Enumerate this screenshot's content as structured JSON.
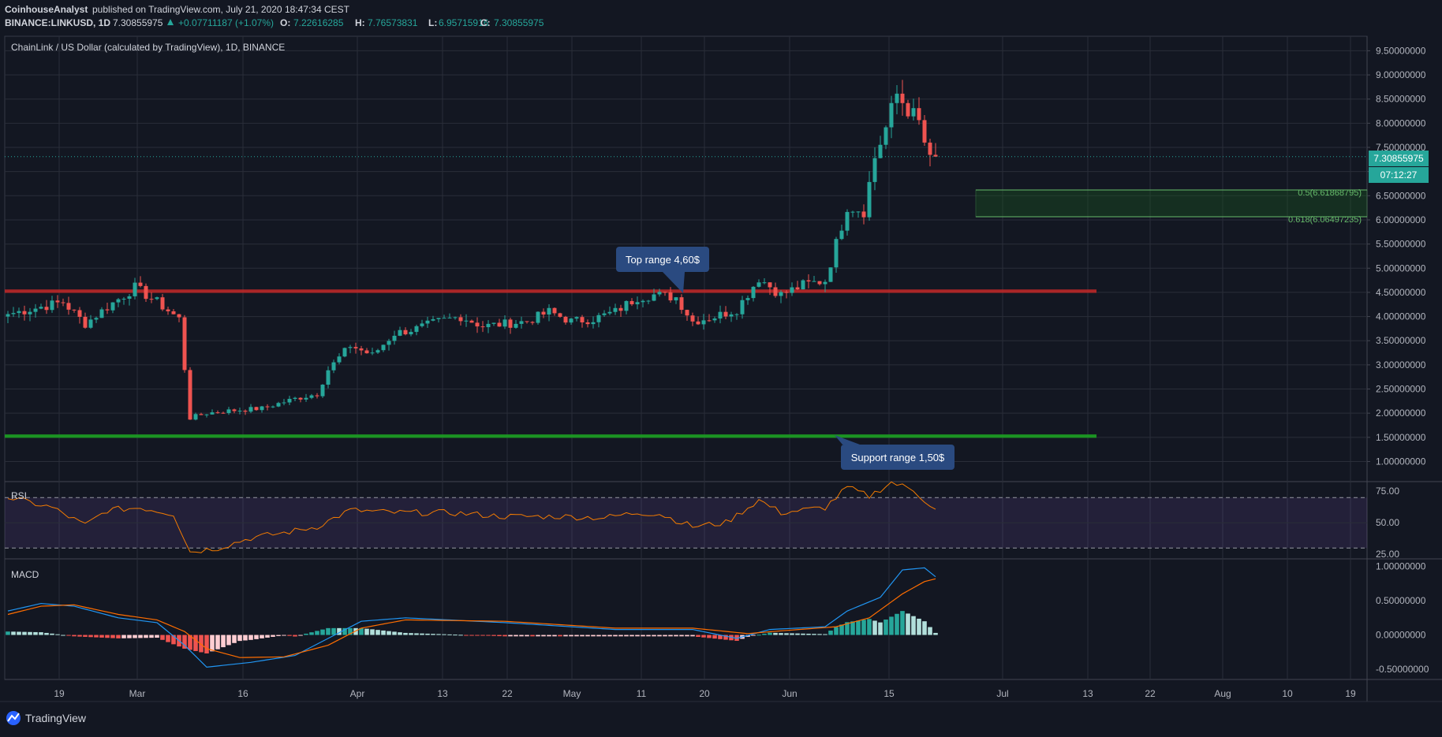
{
  "header": {
    "author": "CoinhouseAnalyst",
    "published": "published on TradingView.com, July 21, 2020 18:47:34 CEST",
    "symbol": "BINANCE:LINKUSD, 1D",
    "last": "7.30855975",
    "change": "+0.07711187 (+1.07%)",
    "o_label": "O:",
    "o": "7.22616285",
    "h_label": "H:",
    "h": "7.76573831",
    "l_label": "L:",
    "l": "6.95715916",
    "c_label": "C:",
    "c": "7.30855975"
  },
  "chart_title": "ChainLink / US Dollar (calculated by TradingView), 1D, BINANCE",
  "price_badge": "7.30855975",
  "countdown_badge": "07:12:27",
  "fib_labels": [
    "0.5(6.61868795)",
    "0.618(6.06497235)"
  ],
  "callouts": {
    "top": "Top range 4,60$",
    "support": "Support range 1,50$"
  },
  "rsi_label": "RSI",
  "macd_label": "MACD",
  "footer_logo": "TradingView",
  "colors": {
    "up": "#26a69a",
    "down": "#ef5350",
    "bg": "#131722",
    "grid": "#2a2e39",
    "text": "#b2b5be"
  },
  "chart_data": [
    {
      "type": "candlestick",
      "x_ticks": [
        "19",
        "Mar",
        "16",
        "Apr",
        "13",
        "22",
        "May",
        "11",
        "20",
        "Jun",
        "15",
        "Jul",
        "13",
        "22",
        "Aug",
        "10",
        "19"
      ],
      "y_ticks": [
        "9.50000000",
        "9.00000000",
        "8.50000000",
        "8.00000000",
        "7.50000000",
        "7.",
        "6.50000000",
        "6.00000000",
        "5.50000000",
        "5.00000000",
        "4.50000000",
        "4.00000000",
        "3.50000000",
        "3.00000000",
        "2.50000000",
        "2.00000000",
        "1.50000000",
        "1.00000000"
      ],
      "ylim": [
        0.6,
        9.8
      ],
      "anchors": [
        [
          0,
          4.05
        ],
        [
          10,
          4.3
        ],
        [
          14,
          3.85
        ],
        [
          18,
          4.2
        ],
        [
          23,
          4.6
        ],
        [
          27,
          4.3
        ],
        [
          31,
          3.95
        ],
        [
          33,
          1.9
        ],
        [
          36,
          2.0
        ],
        [
          40,
          2.05
        ],
        [
          46,
          2.1
        ],
        [
          52,
          2.3
        ],
        [
          56,
          2.4
        ],
        [
          58,
          2.9
        ],
        [
          62,
          3.4
        ],
        [
          66,
          3.2
        ],
        [
          70,
          3.65
        ],
        [
          74,
          3.75
        ],
        [
          78,
          3.9
        ],
        [
          82,
          4.0
        ],
        [
          86,
          3.8
        ],
        [
          90,
          3.85
        ],
        [
          94,
          3.9
        ],
        [
          98,
          4.1
        ],
        [
          102,
          3.9
        ],
        [
          106,
          3.95
        ],
        [
          110,
          4.1
        ],
        [
          114,
          4.4
        ],
        [
          117,
          4.45
        ],
        [
          121,
          4.4
        ],
        [
          124,
          3.9
        ],
        [
          128,
          4.0
        ],
        [
          132,
          4.15
        ],
        [
          136,
          4.8
        ],
        [
          140,
          4.45
        ],
        [
          144,
          4.65
        ],
        [
          148,
          4.75
        ],
        [
          150,
          5.5
        ],
        [
          152,
          6.3
        ],
        [
          155,
          6.2
        ],
        [
          157,
          7.3
        ],
        [
          159,
          7.9
        ],
        [
          161,
          8.6
        ],
        [
          163,
          8.3
        ],
        [
          165,
          8.0
        ],
        [
          167,
          7.2
        ],
        [
          168,
          7.3
        ]
      ]
    },
    {
      "type": "line",
      "name": "RSI",
      "y_ticks": [
        "75.00",
        "50.00",
        "25.00"
      ],
      "ylim": [
        22,
        82
      ],
      "bands": [
        30,
        70
      ],
      "anchors": [
        [
          0,
          70
        ],
        [
          8,
          62
        ],
        [
          14,
          48
        ],
        [
          18,
          60
        ],
        [
          24,
          62
        ],
        [
          30,
          57
        ],
        [
          33,
          27
        ],
        [
          38,
          30
        ],
        [
          44,
          38
        ],
        [
          50,
          42
        ],
        [
          56,
          47
        ],
        [
          62,
          60
        ],
        [
          70,
          58
        ],
        [
          80,
          58
        ],
        [
          90,
          55
        ],
        [
          100,
          55
        ],
        [
          108,
          54
        ],
        [
          114,
          58
        ],
        [
          118,
          57
        ],
        [
          124,
          47
        ],
        [
          130,
          50
        ],
        [
          136,
          68
        ],
        [
          140,
          58
        ],
        [
          148,
          62
        ],
        [
          152,
          78
        ],
        [
          156,
          71
        ],
        [
          160,
          82
        ],
        [
          164,
          76
        ],
        [
          168,
          60
        ]
      ]
    },
    {
      "type": "line+histogram",
      "name": "MACD",
      "y_ticks": [
        "1.00000000",
        "0.50000000",
        "0.00000000",
        "-0.50000000"
      ],
      "ylim": [
        -0.65,
        1.1
      ],
      "macd_anchors": [
        [
          0,
          0.35
        ],
        [
          6,
          0.46
        ],
        [
          12,
          0.42
        ],
        [
          20,
          0.25
        ],
        [
          27,
          0.18
        ],
        [
          32,
          -0.15
        ],
        [
          36,
          -0.47
        ],
        [
          44,
          -0.4
        ],
        [
          52,
          -0.3
        ],
        [
          58,
          -0.05
        ],
        [
          64,
          0.2
        ],
        [
          72,
          0.25
        ],
        [
          90,
          0.18
        ],
        [
          110,
          0.08
        ],
        [
          124,
          0.08
        ],
        [
          132,
          -0.05
        ],
        [
          138,
          0.08
        ],
        [
          148,
          0.12
        ],
        [
          152,
          0.35
        ],
        [
          158,
          0.55
        ],
        [
          162,
          0.95
        ],
        [
          166,
          0.98
        ],
        [
          168,
          0.85
        ]
      ],
      "signal_anchors": [
        [
          0,
          0.3
        ],
        [
          6,
          0.42
        ],
        [
          12,
          0.44
        ],
        [
          20,
          0.3
        ],
        [
          27,
          0.22
        ],
        [
          32,
          0.05
        ],
        [
          36,
          -0.2
        ],
        [
          42,
          -0.33
        ],
        [
          50,
          -0.32
        ],
        [
          58,
          -0.15
        ],
        [
          64,
          0.1
        ],
        [
          72,
          0.22
        ],
        [
          90,
          0.2
        ],
        [
          110,
          0.1
        ],
        [
          124,
          0.1
        ],
        [
          134,
          0.02
        ],
        [
          140,
          0.06
        ],
        [
          150,
          0.12
        ],
        [
          156,
          0.25
        ],
        [
          162,
          0.6
        ],
        [
          166,
          0.78
        ],
        [
          168,
          0.82
        ]
      ]
    }
  ]
}
